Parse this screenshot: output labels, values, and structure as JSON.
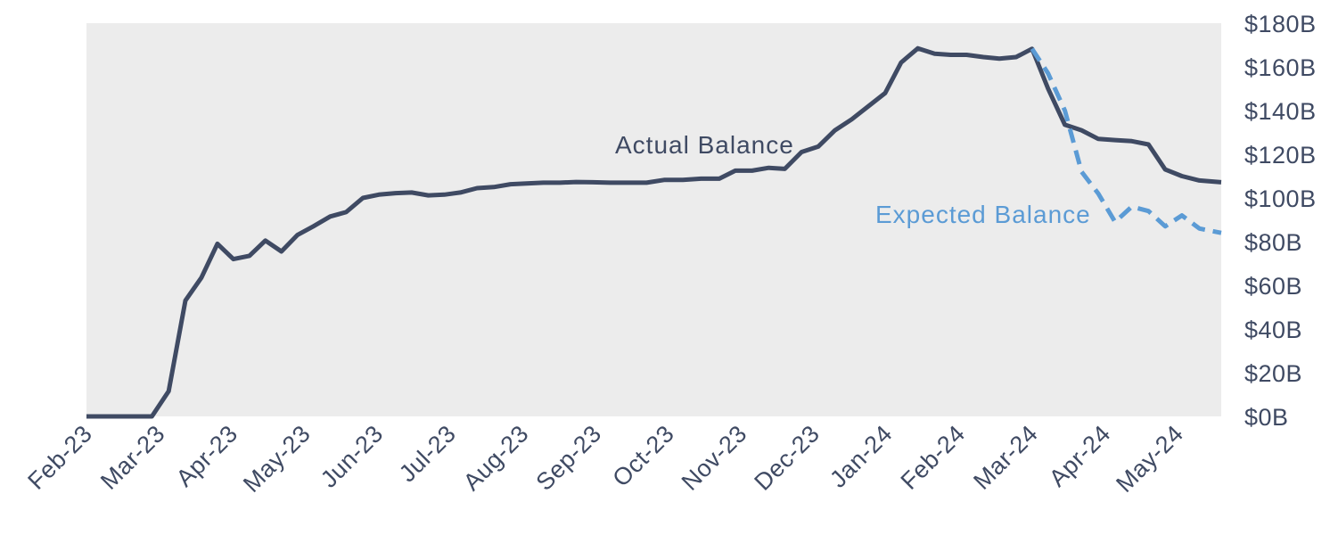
{
  "chart_data": {
    "type": "line",
    "title": "",
    "xlabel": "",
    "ylabel": "",
    "ylim": [
      0,
      180
    ],
    "y_unit": "B",
    "y_ticks": [
      "$0B",
      "$20B",
      "$40B",
      "$60B",
      "$80B",
      "$100B",
      "$120B",
      "$140B",
      "$160B",
      "$180B"
    ],
    "y_axis_position": "right",
    "grid": false,
    "x_tick_labels": [
      "Feb-23",
      "Mar-23",
      "Apr-23",
      "May-23",
      "Jun-23",
      "Jul-23",
      "Aug-23",
      "Sep-23",
      "Oct-23",
      "Nov-23",
      "Dec-23",
      "Jan-24",
      "Feb-24",
      "Mar-24",
      "Apr-24",
      "May-24"
    ],
    "x_range_months": [
      0,
      15.6
    ],
    "series": [
      {
        "name": "Actual Balance",
        "color": "#3f4a63",
        "dash": "solid",
        "x": [
          0,
          0.9,
          1.13,
          1.36,
          1.58,
          1.8,
          2.02,
          2.24,
          2.46,
          2.68,
          2.9,
          3.12,
          3.35,
          3.57,
          3.8,
          4.02,
          4.25,
          4.47,
          4.7,
          4.92,
          5.14,
          5.37,
          5.6,
          5.83,
          6.05,
          6.28,
          6.51,
          6.73,
          6.96,
          7.2,
          7.45,
          7.7,
          7.95,
          8.2,
          8.45,
          8.7,
          8.92,
          9.15,
          9.38,
          9.6,
          9.83,
          10.06,
          10.29,
          10.52,
          10.75,
          10.98,
          11.2,
          11.43,
          11.66,
          11.88,
          12.1,
          12.33,
          12.55,
          12.78,
          13.0,
          13.22,
          13.45,
          13.68,
          13.91,
          14.14,
          14.37,
          14.6,
          14.83,
          15.06,
          15.3,
          15.6
        ],
        "values": [
          0,
          0,
          11.5,
          53,
          63.5,
          79,
          72,
          73.5,
          80.5,
          75.5,
          83,
          87,
          91.5,
          93.5,
          100,
          101.5,
          102.2,
          102.5,
          101.2,
          101.5,
          102.5,
          104.5,
          105,
          106.3,
          106.6,
          107,
          107,
          107.3,
          107.2,
          107,
          107,
          107,
          108.3,
          108.3,
          108.8,
          108.8,
          112.5,
          112.5,
          113.8,
          113.3,
          121,
          123.5,
          131,
          136,
          142,
          148,
          162,
          168.5,
          166,
          165.5,
          165.5,
          164.5,
          163.8,
          164.5,
          168.3,
          150,
          133.5,
          131,
          127,
          126.5,
          126,
          124.5,
          113,
          110,
          108,
          107.2
        ]
      },
      {
        "name": "Expected Balance",
        "color": "#5b9bd5",
        "dash": "dashed",
        "x": [
          13.0,
          13.22,
          13.45,
          13.68,
          13.91,
          14.14,
          14.37,
          14.6,
          14.83,
          15.06,
          15.3,
          15.6
        ],
        "values": [
          168.3,
          157,
          140,
          112,
          102,
          89,
          96,
          94,
          87,
          92,
          86,
          84
        ]
      }
    ],
    "annotations": [
      {
        "text": "Actual Balance",
        "color": "#3f4a63"
      },
      {
        "text": "Expected Balance",
        "color": "#5b9bd5"
      }
    ]
  }
}
